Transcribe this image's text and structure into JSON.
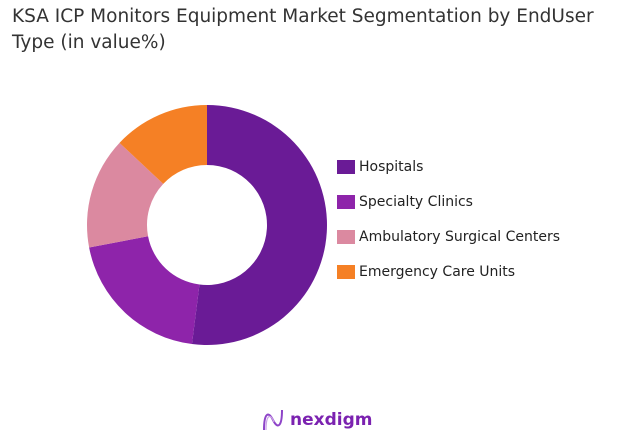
{
  "chart_data": {
    "type": "pie",
    "title": "KSA ICP Monitors Equipment Market Segmentation by EndUser Type (in value%)",
    "categories": [
      "Hospitals",
      "Specialty Clinics",
      "Ambulatory Surgical Centers",
      "Emergency Care Units"
    ],
    "values": [
      52,
      20,
      15,
      13
    ],
    "colors": [
      "#6A1B96",
      "#8E24AA",
      "#DB89A0",
      "#F58025"
    ],
    "donut": true,
    "legend_position": "right"
  },
  "brand": {
    "name": "nexdigm"
  }
}
